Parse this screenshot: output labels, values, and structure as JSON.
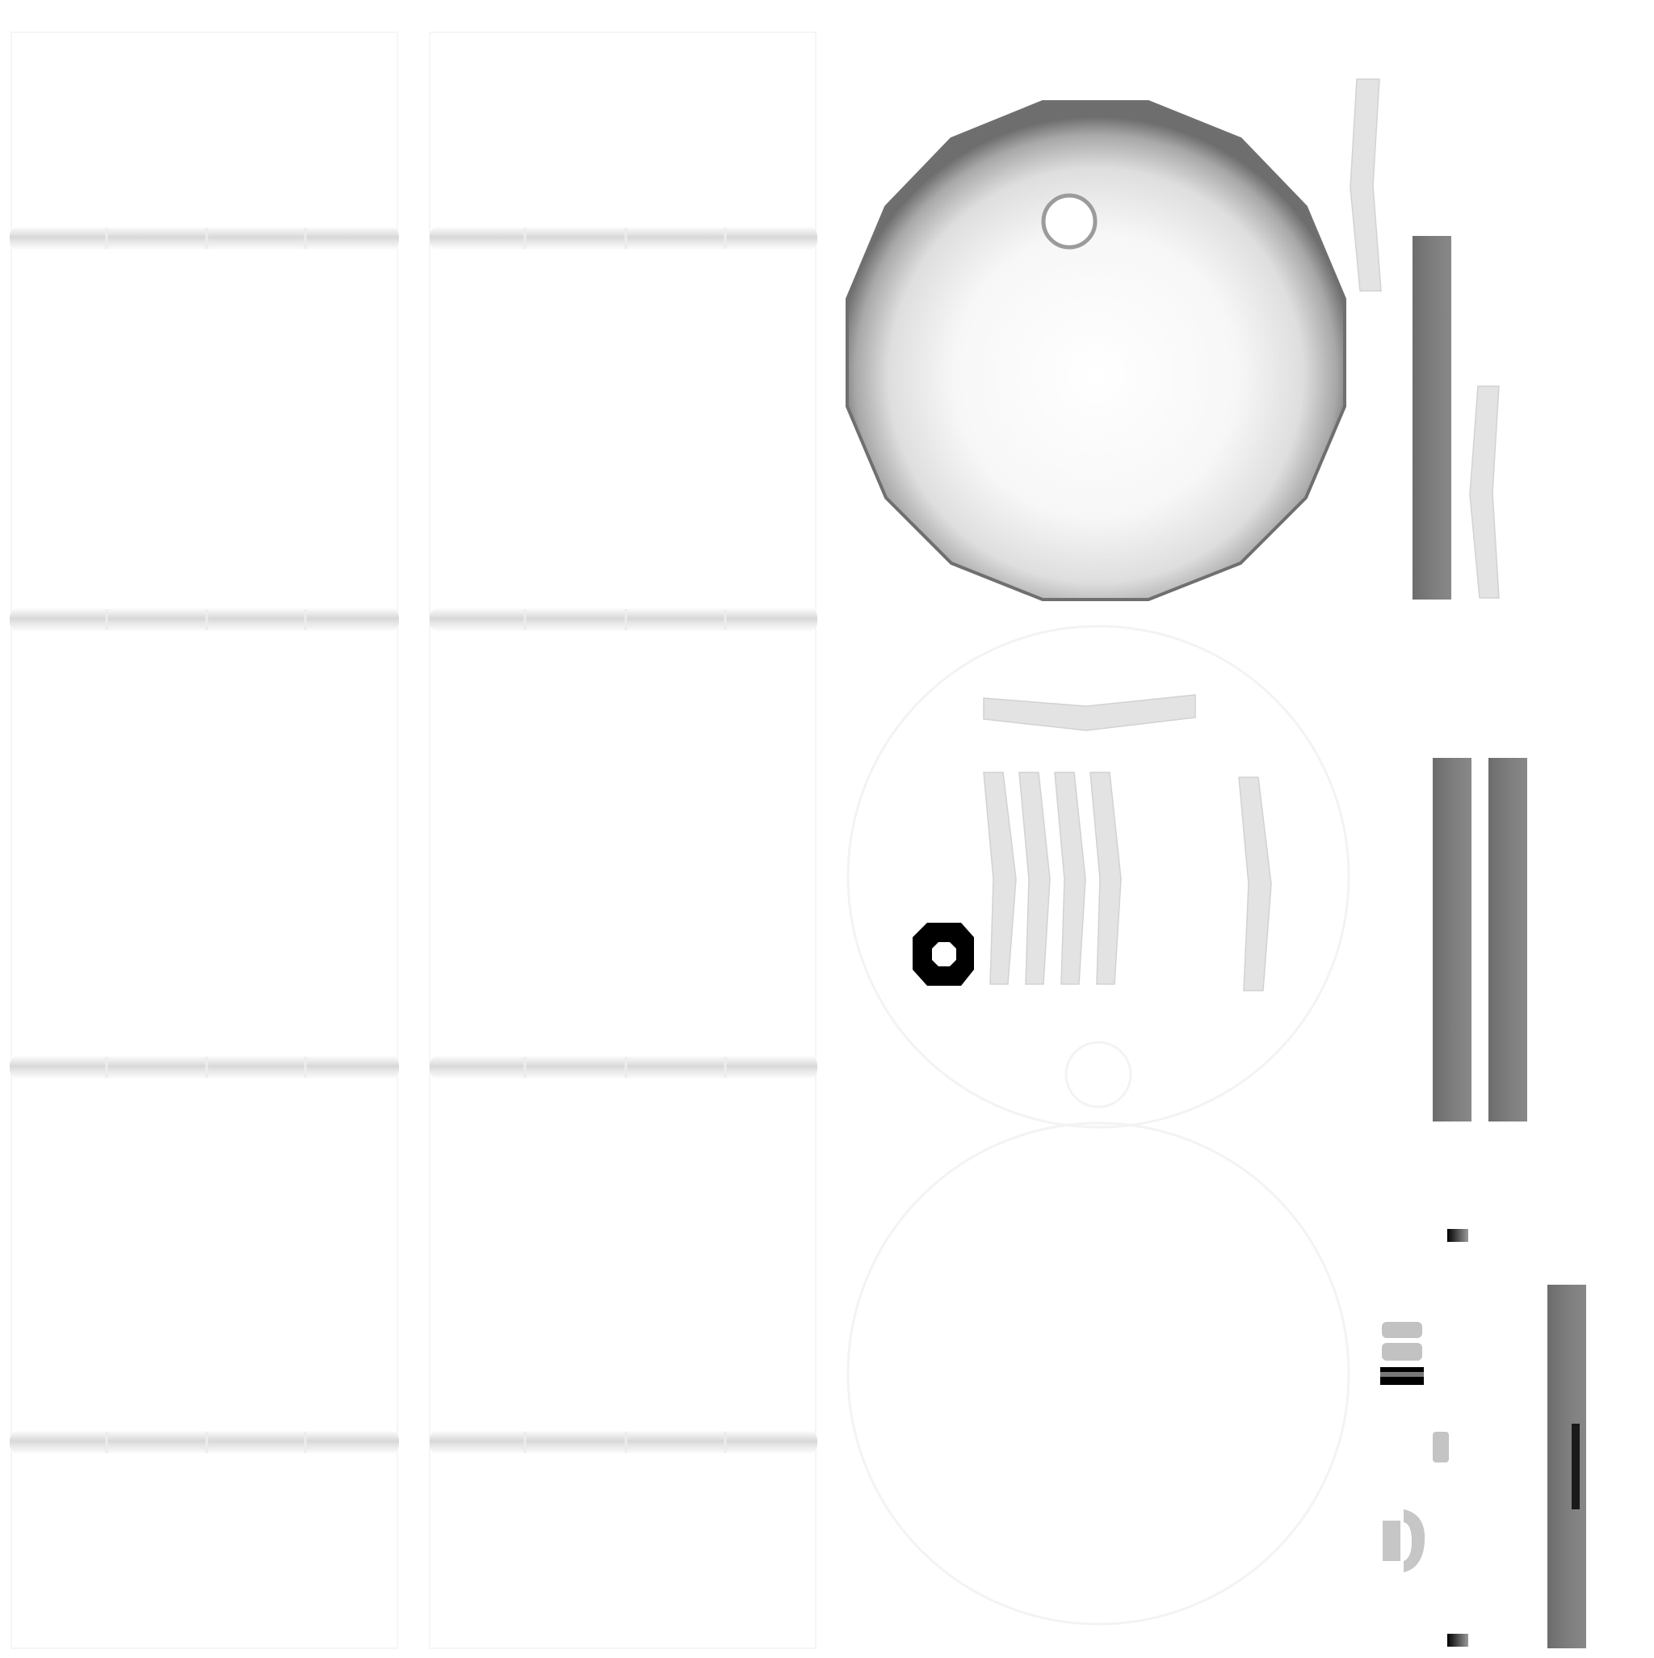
{
  "texture_atlas": {
    "background_color": "#ffffff",
    "colors": {
      "seam_shadow": "#dcdcdc",
      "strip_light": "#e6e6e6",
      "bar_dark": "#7a7a7a",
      "disc_edge": "#707070",
      "disc_center": "#ffffff",
      "ring_black": "#000000",
      "small_gray": "#c4c4c4"
    },
    "regions": [
      "soft-seam-grid",
      "large-shaded-disc",
      "light-strips",
      "dark-vertical-bars",
      "black-ring",
      "small-marks"
    ]
  }
}
